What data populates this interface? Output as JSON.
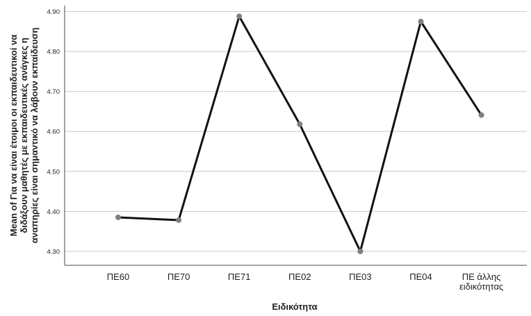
{
  "chart_data": {
    "type": "line",
    "title": "",
    "xlabel": "Ειδικότητα",
    "ylabel_lines": [
      "Mean of Για να είναι έτοιμοι οι εκπαιδευτικοί να",
      "διδάξουν μαθητές με εκπαιδευτικές ανάγκες η",
      "αναπηρίες είναι σημαντικό να λάβουν εκπαίδευση"
    ],
    "categories": [
      "ΠΕ60",
      "ΠΕ70",
      "ΠΕ71",
      "ΠΕ02",
      "ΠΕ03",
      "ΠΕ04",
      "ΠΕ άλλης ειδικότητας"
    ],
    "category_label_lines": [
      [
        "ΠΕ60"
      ],
      [
        "ΠΕ70"
      ],
      [
        "ΠΕ71"
      ],
      [
        "ΠΕ02"
      ],
      [
        "ΠΕ03"
      ],
      [
        "ΠΕ04"
      ],
      [
        "ΠΕ άλλης",
        "ειδικότητας"
      ]
    ],
    "series": [
      {
        "values": [
          4.385,
          4.378,
          4.888,
          4.618,
          4.3,
          4.875,
          4.641
        ]
      }
    ],
    "ylim": [
      4.265,
      4.915
    ],
    "yticks": [
      4.3,
      4.4,
      4.5,
      4.6,
      4.7,
      4.8,
      4.9
    ],
    "ytick_labels": [
      "4.30",
      "4.40",
      "4.50",
      "4.60",
      "4.70",
      "4.80",
      "4.90"
    ],
    "grid": "horizontal",
    "colors": {
      "line": "#111111",
      "marker": "#7f7f7f",
      "grid": "#c8c8c8",
      "axis": "#4a4a4a",
      "text": "#1e1e1e"
    }
  }
}
